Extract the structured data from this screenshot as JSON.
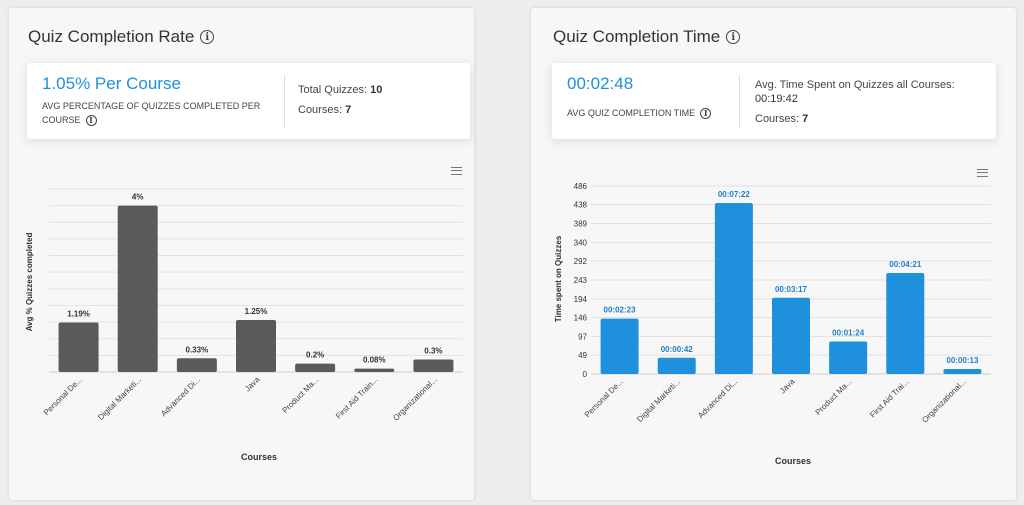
{
  "left_panel": {
    "title": "Quiz Completion Rate",
    "big_value": "1.05% Per Course",
    "sub_label": "AVG PERCENTAGE OF QUIZZES COMPLETED PER COURSE",
    "stat1_label": "Total Quizzes: ",
    "stat1_value": "10",
    "stat2_label": "Courses: ",
    "stat2_value": "7"
  },
  "right_panel": {
    "title": "Quiz Completion Time",
    "big_value": "00:02:48",
    "sub_label": "AVG QUIZ COMPLETION TIME",
    "stat1_label": "Avg. Time Spent on Quizzes all Courses:",
    "stat1_value": "00:19:42",
    "stat2_label": "Courses: ",
    "stat2_value": "7"
  },
  "chart_data": [
    {
      "type": "bar",
      "categories": [
        "Personal De...",
        "Digital Marketi...",
        "Advanced Di...",
        "Java",
        "Product Ma...",
        "First Aid Train...",
        "Organizational..."
      ],
      "values": [
        1.19,
        4,
        0.33,
        1.25,
        0.2,
        0.08,
        0.3
      ],
      "data_labels": [
        "1.19%",
        "4%",
        "0.33%",
        "1.25%",
        "0.2%",
        "0.08%",
        "0.3%"
      ],
      "xlabel": "Courses",
      "ylabel": "Avg % Quizzes completed",
      "ylim": [
        0,
        4.4
      ],
      "grid": true,
      "y_tick_labels_visible": false,
      "color": "#5a5a5a"
    },
    {
      "type": "bar",
      "categories": [
        "Personal De...",
        "Digital Marketi...",
        "Advanced Di...",
        "Java",
        "Product Ma...",
        "First Aid Trai...",
        "Organizational..."
      ],
      "values": [
        143,
        42,
        442,
        197,
        84,
        261,
        13
      ],
      "data_labels": [
        "00:02:23",
        "00:00:42",
        "00:07:22",
        "00:03:17",
        "00:01:24",
        "00:04:21",
        "00:00:13"
      ],
      "xlabel": "Courses",
      "ylabel": "Time spent on Quizzes",
      "ylim": [
        0,
        486
      ],
      "y_ticks": [
        0,
        49,
        97,
        146,
        194,
        243,
        292,
        340,
        389,
        438,
        486
      ],
      "grid": true,
      "color": "#1f91dc"
    }
  ]
}
